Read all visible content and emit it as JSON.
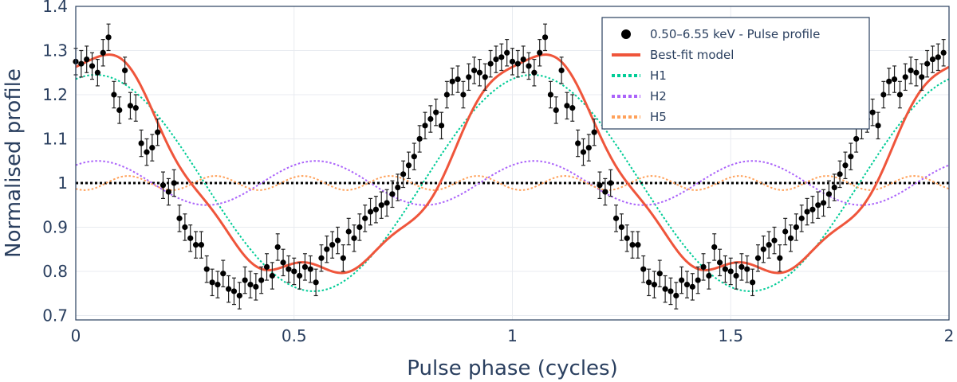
{
  "chart_data": {
    "type": "scatter",
    "xlabel": "Pulse phase (cycles)",
    "ylabel": "Normalised profile",
    "xlim": [
      0,
      2
    ],
    "ylim": [
      0.69,
      1.4
    ],
    "x_ticks": [
      0,
      0.5,
      1,
      1.5,
      2
    ],
    "x_tick_labels": [
      "0",
      "0.5",
      "1",
      "1.5",
      "2"
    ],
    "y_ticks": [
      0.7,
      0.8,
      0.9,
      1,
      1.1,
      1.2,
      1.3,
      1.4
    ],
    "y_tick_labels": [
      "0.7",
      "0.8",
      "0.9",
      "1",
      "1.1",
      "1.2",
      "1.3",
      "1.4"
    ],
    "grid": true,
    "reference_line": 1.0,
    "legend_position": "top-right",
    "legend": [
      {
        "key": "data",
        "label": "0.50–6.55 keV - Pulse profile",
        "color": "#000000",
        "style": "marker"
      },
      {
        "key": "model",
        "label": "Best-fit model",
        "color": "#ef553b",
        "style": "solid"
      },
      {
        "key": "h1",
        "label": "H1",
        "color": "#00cc96",
        "style": "dotted"
      },
      {
        "key": "h2",
        "label": "H2",
        "color": "#ab63fa",
        "style": "dotted"
      },
      {
        "key": "h5",
        "label": "H5",
        "color": "#ffa15a",
        "style": "dotted"
      }
    ],
    "harmonics": {
      "h1": {
        "amplitude": 0.245,
        "peak_phase": 0.045
      },
      "h2": {
        "amplitude": 0.05,
        "peak_phase": 0.05
      },
      "h5": {
        "amplitude": 0.016,
        "peak_phase": 0.12
      }
    },
    "data_phase": [
      0.0,
      0.0125,
      0.025,
      0.0375,
      0.05,
      0.0625,
      0.075,
      0.0875,
      0.1,
      0.1125,
      0.125,
      0.1375,
      0.15,
      0.1625,
      0.175,
      0.1875,
      0.2,
      0.2125,
      0.225,
      0.2375,
      0.25,
      0.2625,
      0.275,
      0.2875,
      0.3,
      0.3125,
      0.325,
      0.3375,
      0.35,
      0.3625,
      0.375,
      0.3875,
      0.4,
      0.4125,
      0.425,
      0.4375,
      0.45,
      0.4625,
      0.475,
      0.4875,
      0.5,
      0.5125,
      0.525,
      0.5375,
      0.55,
      0.5625,
      0.575,
      0.5875,
      0.6,
      0.6125,
      0.625,
      0.6375,
      0.65,
      0.6625,
      0.675,
      0.6875,
      0.7,
      0.7125,
      0.725,
      0.7375,
      0.75,
      0.7625,
      0.775,
      0.7875,
      0.8,
      0.8125,
      0.825,
      0.8375,
      0.85,
      0.8625,
      0.875,
      0.8875,
      0.9,
      0.9125,
      0.925,
      0.9375,
      0.95,
      0.9625,
      0.975,
      0.9875
    ],
    "data_profile": [
      1.275,
      1.27,
      1.28,
      1.265,
      1.25,
      1.295,
      1.33,
      1.2,
      1.165,
      1.255,
      1.175,
      1.17,
      1.09,
      1.07,
      1.08,
      1.115,
      0.995,
      0.98,
      1.0,
      0.92,
      0.9,
      0.875,
      0.86,
      0.86,
      0.805,
      0.775,
      0.77,
      0.795,
      0.76,
      0.755,
      0.745,
      0.78,
      0.77,
      0.765,
      0.78,
      0.81,
      0.79,
      0.855,
      0.82,
      0.805,
      0.8,
      0.79,
      0.81,
      0.805,
      0.775,
      0.83,
      0.85,
      0.86,
      0.87,
      0.83,
      0.89,
      0.875,
      0.9,
      0.92,
      0.935,
      0.94,
      0.95,
      0.955,
      0.975,
      0.99,
      1.02,
      1.04,
      1.06,
      1.1,
      1.13,
      1.145,
      1.16,
      1.13,
      1.2,
      1.23,
      1.235,
      1.2,
      1.24,
      1.255,
      1.25,
      1.24,
      1.27,
      1.28,
      1.285,
      1.295
    ],
    "data_error": 0.03,
    "cycles": 2
  }
}
